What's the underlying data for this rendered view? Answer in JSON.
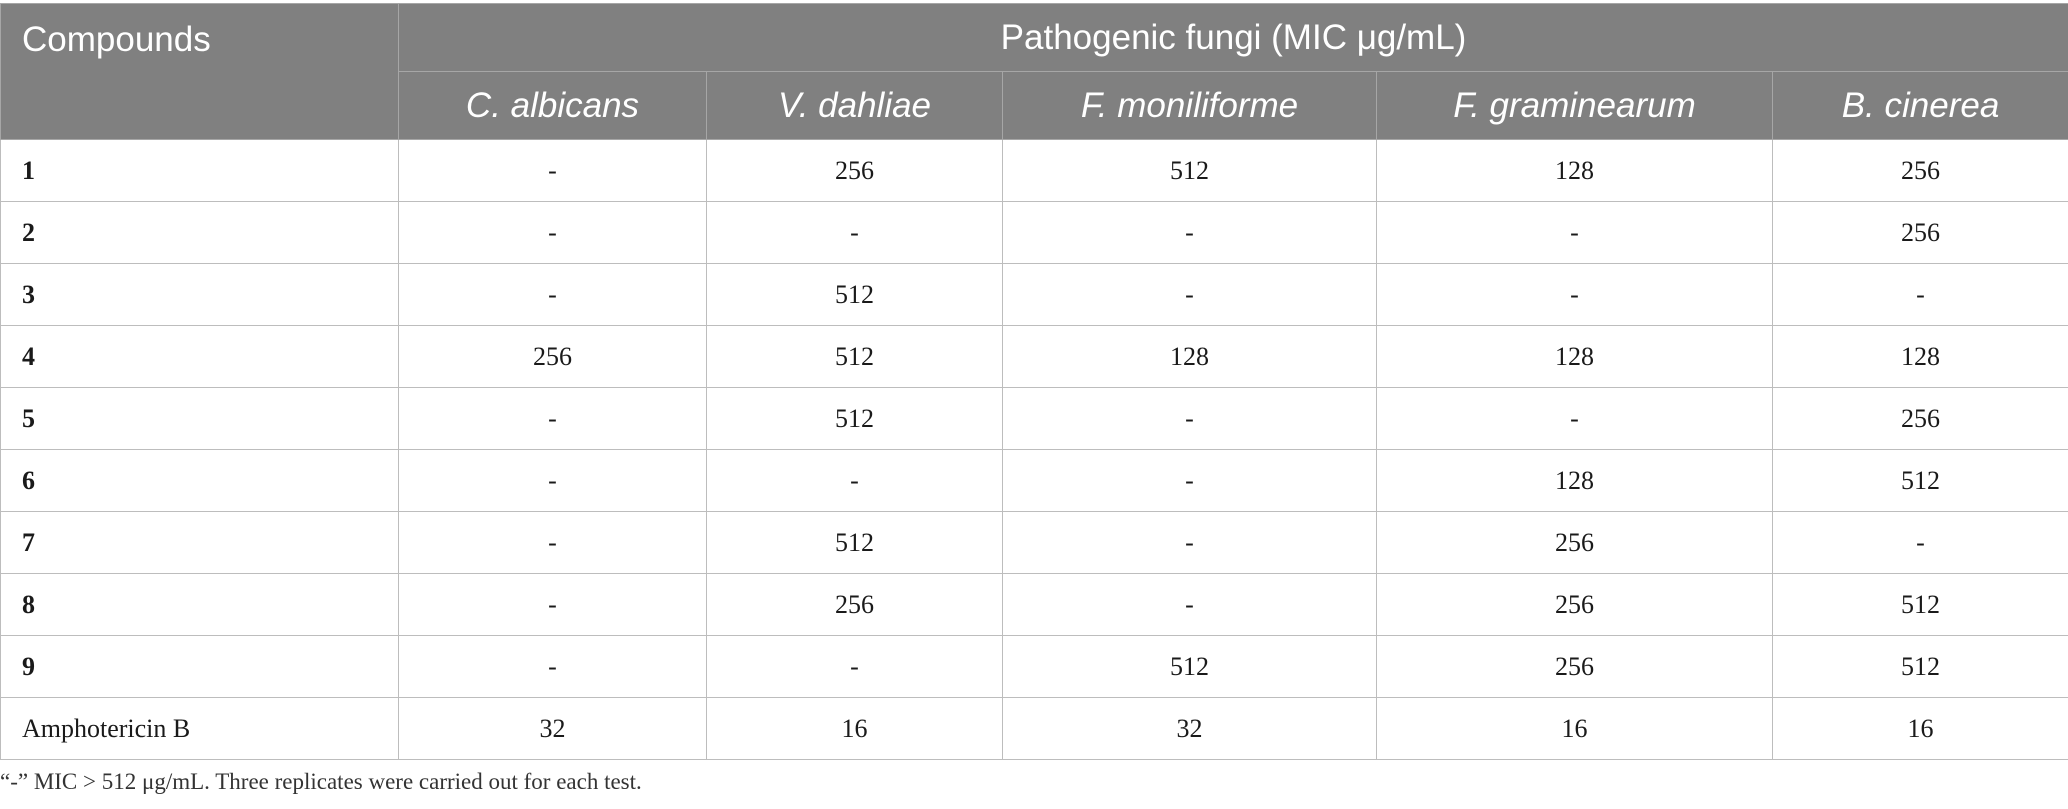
{
  "table": {
    "header": {
      "compounds_label": "Compounds",
      "group_label": "Pathogenic fungi (MIC μg/mL)",
      "species": [
        "C. albicans",
        "V. dahliae",
        "F. moniliforme",
        "F. graminearum",
        "B. cinerea"
      ]
    },
    "rows": [
      {
        "compound": "1",
        "bold": true,
        "values": [
          "-",
          "256",
          "512",
          "128",
          "256"
        ]
      },
      {
        "compound": "2",
        "bold": true,
        "values": [
          "-",
          "-",
          "-",
          "-",
          "256"
        ]
      },
      {
        "compound": "3",
        "bold": true,
        "values": [
          "-",
          "512",
          "-",
          "-",
          "-"
        ]
      },
      {
        "compound": "4",
        "bold": true,
        "values": [
          "256",
          "512",
          "128",
          "128",
          "128"
        ]
      },
      {
        "compound": "5",
        "bold": true,
        "values": [
          "-",
          "512",
          "-",
          "-",
          "256"
        ]
      },
      {
        "compound": "6",
        "bold": true,
        "values": [
          "-",
          "-",
          "-",
          "128",
          "512"
        ]
      },
      {
        "compound": "7",
        "bold": true,
        "values": [
          "-",
          "512",
          "-",
          "256",
          "-"
        ]
      },
      {
        "compound": "8",
        "bold": true,
        "values": [
          "-",
          "256",
          "-",
          "256",
          "512"
        ]
      },
      {
        "compound": "9",
        "bold": true,
        "values": [
          "-",
          "-",
          "512",
          "256",
          "512"
        ]
      },
      {
        "compound": "Amphotericin B",
        "bold": false,
        "values": [
          "32",
          "16",
          "32",
          "16",
          "16"
        ]
      }
    ],
    "header_color": "#808080",
    "border_color": "#bdbdbd"
  },
  "footnote": "“-” MIC > 512 μg/mL. Three replicates were carried out for each test."
}
